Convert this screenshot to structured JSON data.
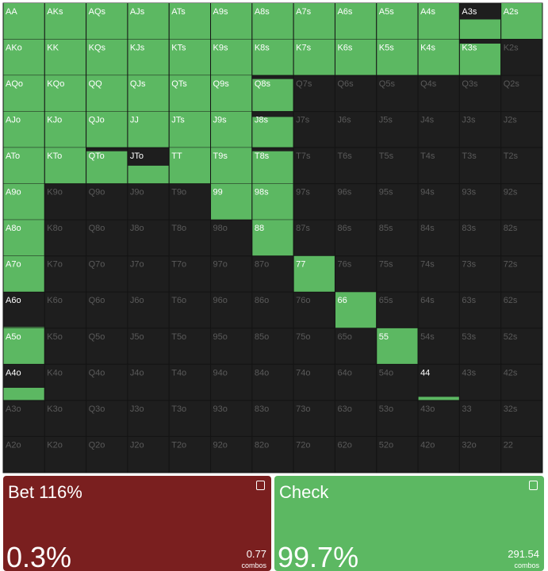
{
  "grid": {
    "hands": [
      [
        "AA",
        "AKs",
        "AQs",
        "AJs",
        "ATs",
        "A9s",
        "A8s",
        "A7s",
        "A6s",
        "A5s",
        "A4s",
        "A3s",
        "A2s"
      ],
      [
        "AKo",
        "KK",
        "KQs",
        "KJs",
        "KTs",
        "K9s",
        "K8s",
        "K7s",
        "K6s",
        "K5s",
        "K4s",
        "K3s",
        "K2s"
      ],
      [
        "AQo",
        "KQo",
        "QQ",
        "QJs",
        "QTs",
        "Q9s",
        "Q8s",
        "Q7s",
        "Q6s",
        "Q5s",
        "Q4s",
        "Q3s",
        "Q2s"
      ],
      [
        "AJo",
        "KJo",
        "QJo",
        "JJ",
        "JTs",
        "J9s",
        "J8s",
        "J7s",
        "J6s",
        "J5s",
        "J4s",
        "J3s",
        "J2s"
      ],
      [
        "ATo",
        "KTo",
        "QTo",
        "JTo",
        "TT",
        "T9s",
        "T8s",
        "T7s",
        "T6s",
        "T5s",
        "T4s",
        "T3s",
        "T2s"
      ],
      [
        "A9o",
        "K9o",
        "Q9o",
        "J9o",
        "T9o",
        "99",
        "98s",
        "97s",
        "96s",
        "95s",
        "94s",
        "93s",
        "92s"
      ],
      [
        "A8o",
        "K8o",
        "Q8o",
        "J8o",
        "T8o",
        "98o",
        "88",
        "87s",
        "86s",
        "85s",
        "84s",
        "83s",
        "82s"
      ],
      [
        "A7o",
        "K7o",
        "Q7o",
        "J7o",
        "T7o",
        "97o",
        "87o",
        "77",
        "76s",
        "75s",
        "74s",
        "73s",
        "72s"
      ],
      [
        "A6o",
        "K6o",
        "Q6o",
        "J6o",
        "T6o",
        "96o",
        "86o",
        "76o",
        "66",
        "65s",
        "64s",
        "63s",
        "62s"
      ],
      [
        "A5o",
        "K5o",
        "Q5o",
        "J5o",
        "T5o",
        "95o",
        "85o",
        "75o",
        "65o",
        "55",
        "54s",
        "53s",
        "52s"
      ],
      [
        "A4o",
        "K4o",
        "Q4o",
        "J4o",
        "T4o",
        "94o",
        "84o",
        "74o",
        "64o",
        "54o",
        "44",
        "43s",
        "42s"
      ],
      [
        "A3o",
        "K3o",
        "Q3o",
        "J3o",
        "T3o",
        "93o",
        "83o",
        "73o",
        "63o",
        "53o",
        "43o",
        "33",
        "32s"
      ],
      [
        "A2o",
        "K2o",
        "Q2o",
        "J2o",
        "T2o",
        "92o",
        "82o",
        "72o",
        "62o",
        "52o",
        "42o",
        "32o",
        "22"
      ]
    ],
    "fills": [
      [
        1,
        1,
        1,
        1,
        1,
        1,
        1,
        1,
        1,
        1,
        1,
        0.55,
        1
      ],
      [
        1,
        1,
        1,
        1,
        1,
        1,
        1,
        1,
        1,
        1,
        1,
        0.88,
        0
      ],
      [
        1,
        1,
        1,
        1,
        1,
        1,
        0.9,
        0,
        0,
        0,
        0,
        0,
        0
      ],
      [
        1,
        1,
        1,
        1,
        1,
        1,
        0.85,
        0,
        0,
        0,
        0,
        0,
        0
      ],
      [
        1,
        1,
        0.9,
        0.5,
        1,
        1,
        0.9,
        0,
        0,
        0,
        0,
        0,
        0
      ],
      [
        1,
        0,
        0,
        0,
        0,
        1,
        1,
        0,
        0,
        0,
        0,
        0,
        0
      ],
      [
        1,
        0,
        0,
        0,
        0,
        0,
        1,
        0,
        0,
        0,
        0,
        0,
        0
      ],
      [
        1,
        0,
        0,
        0,
        0,
        0,
        0,
        1,
        0,
        0,
        0,
        0,
        0
      ],
      [
        0.03,
        0,
        0,
        0,
        0,
        0,
        0,
        0,
        1,
        0,
        0,
        0,
        0
      ],
      [
        1,
        0,
        0,
        0,
        0,
        0,
        0,
        0,
        0,
        1,
        0,
        0,
        0
      ],
      [
        0.35,
        0,
        0,
        0,
        0,
        0,
        0,
        0,
        0,
        0,
        0.1,
        0,
        0
      ],
      [
        0,
        0,
        0,
        0,
        0,
        0,
        0,
        0,
        0,
        0,
        0,
        0,
        0
      ],
      [
        0,
        0,
        0,
        0,
        0,
        0,
        0,
        0,
        0,
        0,
        0,
        0,
        0
      ]
    ]
  },
  "actions": [
    {
      "name": "Bet 116%",
      "frequency": "0.3%",
      "combos": "0.77",
      "combos_label": "combos"
    },
    {
      "name": "Check",
      "frequency": "99.7%",
      "combos": "291.54",
      "combos_label": "combos"
    }
  ]
}
